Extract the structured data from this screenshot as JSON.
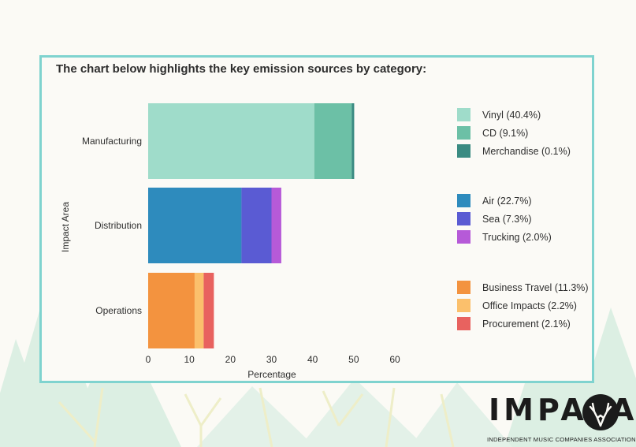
{
  "heading": "The chart below highlights the key emission sources by category:",
  "logo": {
    "word": "IMPALA",
    "subtitle": "INDEPENDENT MUSIC COMPANIES ASSOCIATION"
  },
  "colors": {
    "card_border": "#7fd3cf",
    "background_trees": "#dcefe3",
    "tree_lines": "#f1f1c8"
  },
  "chart_data": {
    "type": "bar",
    "orientation": "horizontal",
    "stacked": true,
    "categories": [
      "Manufacturing",
      "Distribution",
      "Operations"
    ],
    "xlabel": "Percentage",
    "ylabel": "Impact Area",
    "xlim": [
      0,
      60
    ],
    "xticks": [
      0,
      10,
      20,
      30,
      40,
      50,
      60
    ],
    "grid": false,
    "legend_position": "right",
    "series": [
      {
        "category": "Manufacturing",
        "name": "Vinyl (40.4%)",
        "value": 40.4,
        "color": "#9fdcca"
      },
      {
        "category": "Manufacturing",
        "name": "CD (9.1%)",
        "value": 9.1,
        "color": "#6cc0a6"
      },
      {
        "category": "Manufacturing",
        "name": "Merchandise (0.1%)",
        "value": 0.1,
        "color": "#3a8b82"
      },
      {
        "category": "Distribution",
        "name": "Air (22.7%)",
        "value": 22.7,
        "color": "#2e8bbd"
      },
      {
        "category": "Distribution",
        "name": "Sea (7.3%)",
        "value": 7.3,
        "color": "#5a5bd3"
      },
      {
        "category": "Distribution",
        "name": "Trucking (2.0%)",
        "value": 2.0,
        "color": "#b65ad8"
      },
      {
        "category": "Operations",
        "name": "Business Travel (11.3%)",
        "value": 11.3,
        "color": "#f3933f"
      },
      {
        "category": "Operations",
        "name": "Office Impacts (2.2%)",
        "value": 2.2,
        "color": "#fbc06c"
      },
      {
        "category": "Operations",
        "name": "Procurement (2.1%)",
        "value": 2.1,
        "color": "#e8625f"
      }
    ]
  }
}
